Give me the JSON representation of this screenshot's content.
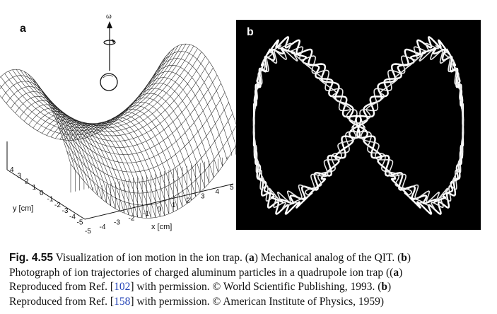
{
  "figure": {
    "panel_a": {
      "label": "a",
      "omega": "ω",
      "x_axis": {
        "label": "x [cm]",
        "ticks": [
          "-5",
          "-4",
          "-3",
          "-2",
          "-1",
          "0",
          "1",
          "2",
          "3",
          "4",
          "5"
        ]
      },
      "y_axis": {
        "label": "y [cm]",
        "ticks": [
          "4",
          "3",
          "2",
          "1",
          "0",
          "-1",
          "-2",
          "-3",
          "-4",
          "-5"
        ]
      }
    },
    "panel_b": {
      "label": "b"
    }
  },
  "caption": {
    "label": "Fig. 4.55",
    "line1": {
      "text": "Visualization of ion motion in the ion trap. (",
      "a": "a",
      "mid": ") Mechanical analog of the QIT. (",
      "b": "b",
      "end": ")"
    },
    "line2": {
      "text": "Photograph of ion trajectories of charged aluminum particles in a quadrupole ion trap ((",
      "a": "a",
      "end": ")"
    },
    "line3": {
      "pre": "Reproduced from Ref. [",
      "ref": "102",
      "post": "] with permission. © World Scientific Publishing, 1993. (",
      "b": "b",
      "end": ")"
    },
    "line4": {
      "pre": "Reproduced from Ref. [",
      "ref": "158",
      "post": "] with permission. © American Institute of Physics, 1959)"
    }
  }
}
